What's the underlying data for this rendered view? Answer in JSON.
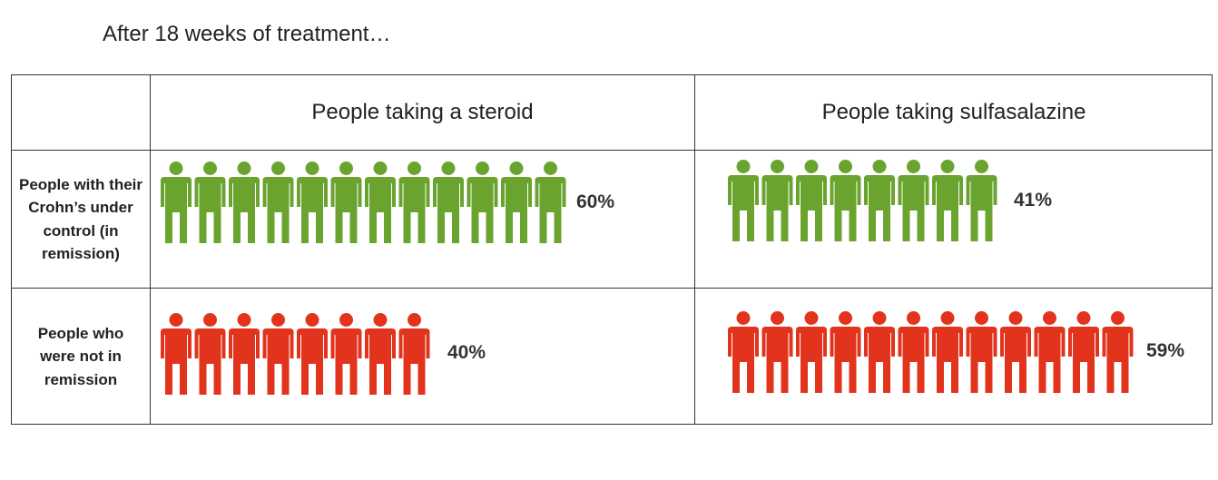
{
  "title": "After 18 weeks of treatment…",
  "colors": {
    "remission": "#6aa42f",
    "not_remission": "#e2341c"
  },
  "chart_data": {
    "type": "table",
    "columns": [
      "People taking a steroid",
      "People taking sulfasalazine"
    ],
    "rows": [
      "People with their Crohn’s under control (in remission)",
      "People who were not in remission"
    ],
    "values": [
      [
        60,
        41
      ],
      [
        40,
        59
      ]
    ],
    "labels": [
      [
        "60%",
        "41%"
      ],
      [
        "40%",
        "59%"
      ]
    ],
    "icon_counts": [
      [
        12,
        8
      ],
      [
        8,
        12
      ]
    ],
    "icon": "person-icon"
  }
}
